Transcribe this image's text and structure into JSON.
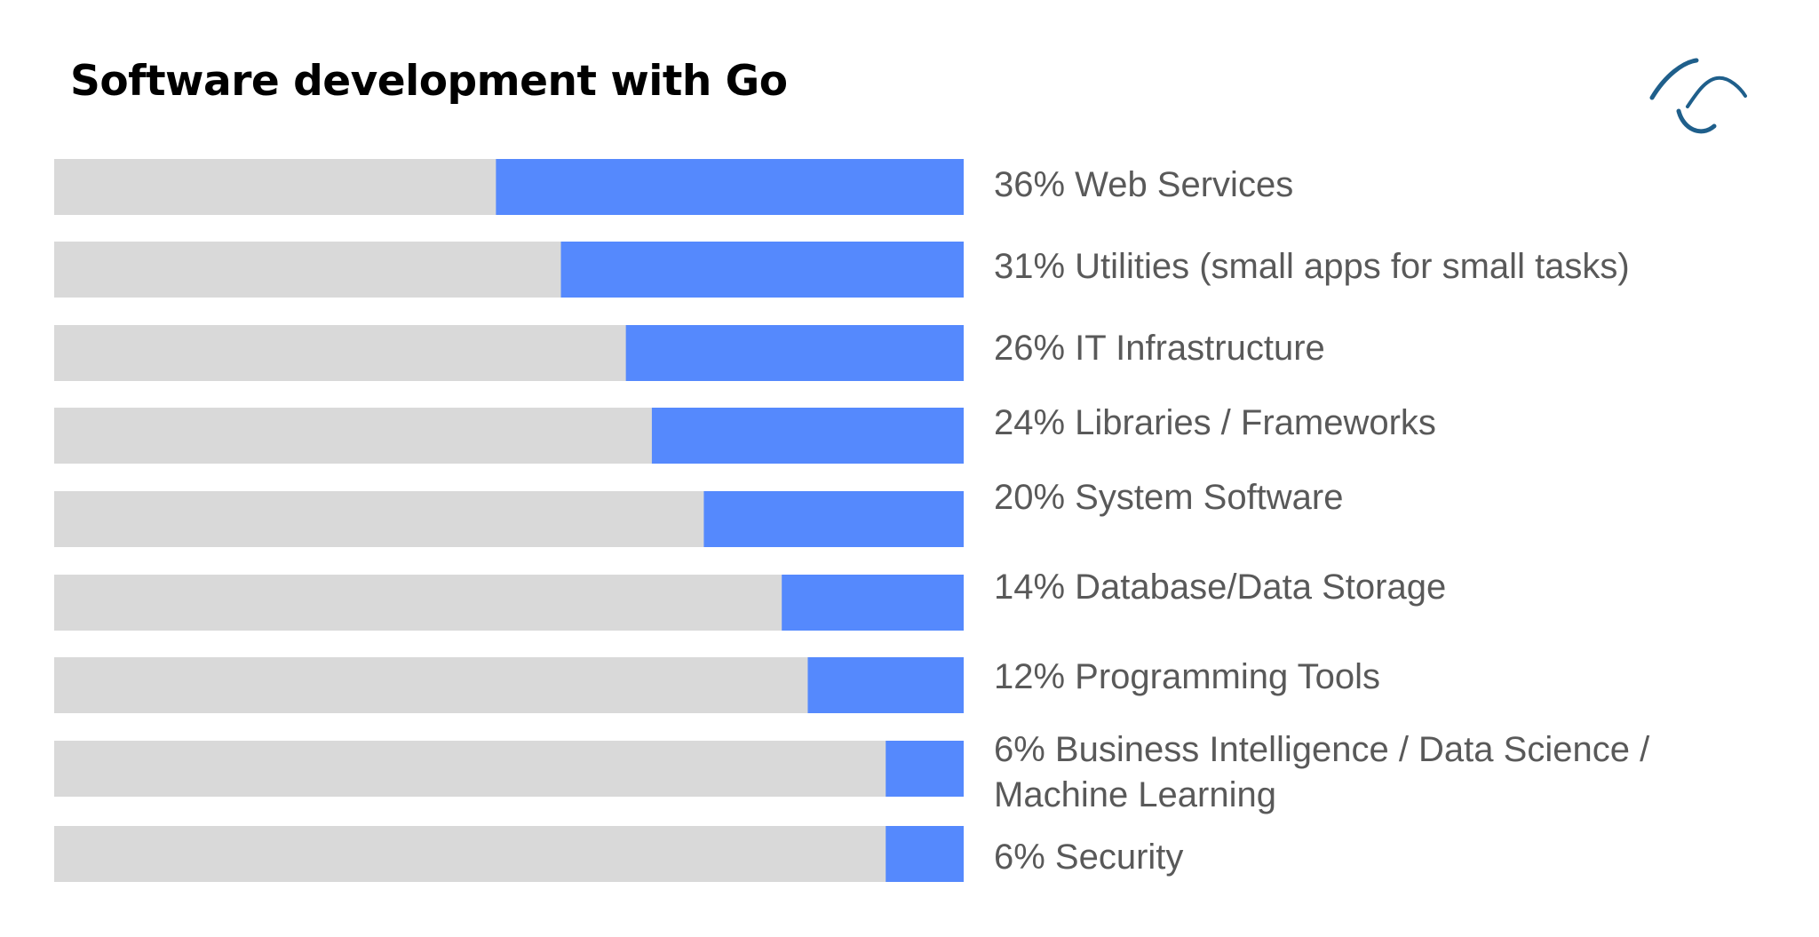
{
  "title": "Software development with Go",
  "logo": {
    "icon": "wave-logo-icon",
    "color": "#1f5f8b"
  },
  "colors": {
    "track": "#d9d9d9",
    "bar": "#5589fd",
    "label": "#595959"
  },
  "chart_data": {
    "type": "bar",
    "orientation": "horizontal",
    "title": "Software development with Go",
    "value_unit": "%",
    "xlim": [
      0,
      70
    ],
    "bars_anchor": "right",
    "categories": [
      "Web Services",
      "Utilities (small apps for small tasks)",
      "IT Infrastructure",
      "Libraries / Frameworks",
      "System Software",
      "Database/Data Storage",
      "Programming Tools",
      "Business Intelligence / Data Science / Machine Learning",
      "Security"
    ],
    "values": [
      36,
      31,
      26,
      24,
      20,
      14,
      12,
      6,
      6
    ],
    "labels": [
      "36% Web Services",
      "31% Utilities (small apps for small tasks)",
      "26% IT Infrastructure",
      "24% Libraries / Frameworks",
      "20% System Software",
      "14% Database/Data Storage",
      "12% Programming Tools",
      "6% Business Intelligence / Data Science / Machine Learning",
      "6% Security"
    ]
  }
}
